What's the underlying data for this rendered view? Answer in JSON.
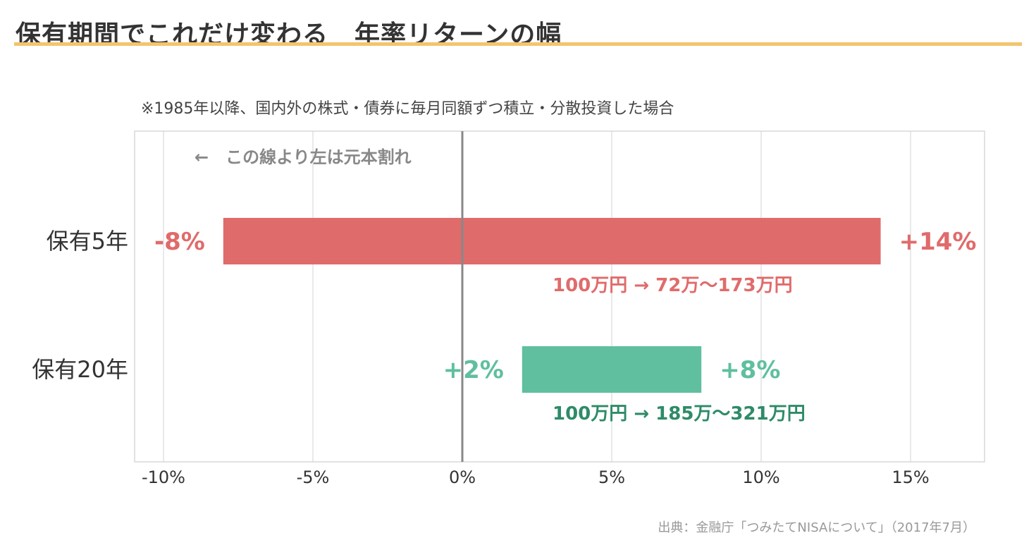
{
  "page": {
    "title": "保有期間でこれだけ変わる　年率リターンの幅",
    "subtitle": "※1985年以降、国内外の株式・債券に毎月同額ずつ積立・分散投資した場合",
    "source": "出典：金融庁「つみたてNISAについて」（2017年7月）"
  },
  "colors": {
    "title_rule": "#f2c46d",
    "bar_5y": "#e06b6b",
    "bar_20y": "#5fbf9f",
    "range_5y": "#e06b6b",
    "range_20y": "#2e8b67",
    "zero_line": "#888888",
    "grid": "#e2e2e2",
    "frame": "#d8d8d8"
  },
  "chart_data": {
    "type": "bar",
    "orientation": "horizontal",
    "categories": [
      "保有5年",
      "保有20年"
    ],
    "series": [
      {
        "low": -8,
        "high": 14,
        "low_label": "-8%",
        "high_label": "+14%",
        "range_text": "100万円 → 72万〜173万円",
        "color": "#e06b6b"
      },
      {
        "low": 2,
        "high": 8,
        "low_label": "+2%",
        "high_label": "+8%",
        "range_text": "100万円 → 185万〜321万円",
        "color": "#5fbf9f"
      }
    ],
    "xlim": [
      -11,
      17.5
    ],
    "x_ticks": [
      -10,
      -5,
      0,
      5,
      10,
      15
    ],
    "x_tick_labels": [
      "-10%",
      "-5%",
      "0%",
      "5%",
      "10%",
      "15%"
    ],
    "grid": true,
    "annotation": "←　この線より左は元本割れ"
  }
}
